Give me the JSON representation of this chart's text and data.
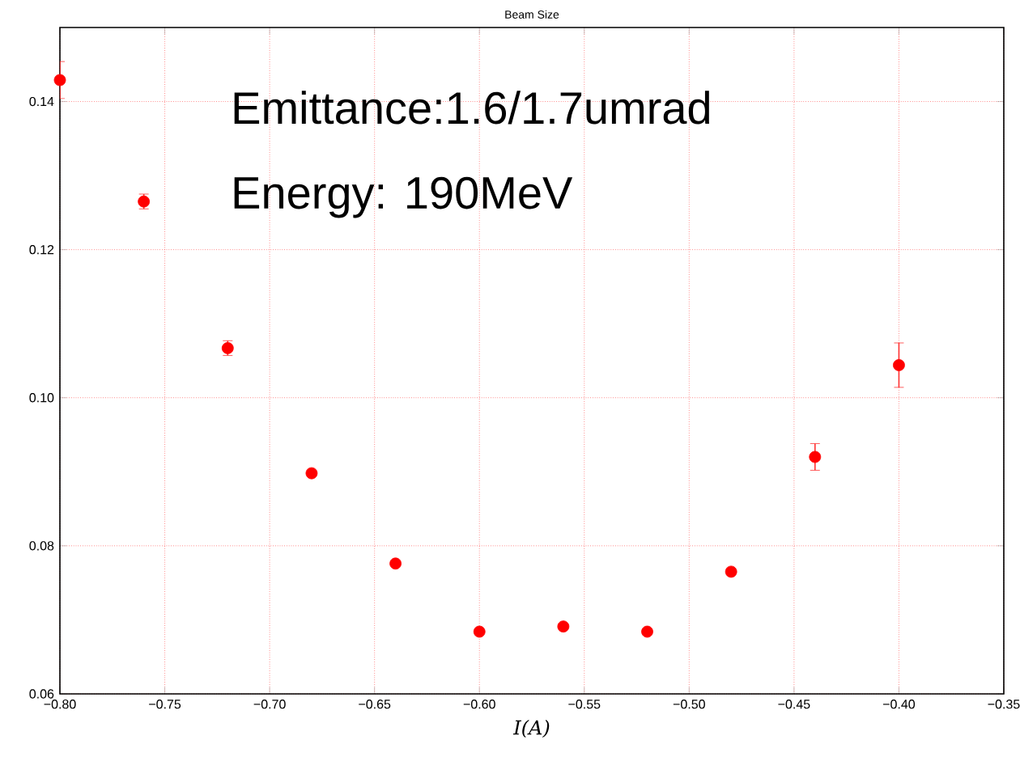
{
  "chart_data": {
    "type": "scatter",
    "title": "Beam Size",
    "xlabel": "I(A)",
    "x": [
      -0.8,
      -0.76,
      -0.72,
      -0.68,
      -0.64,
      -0.6,
      -0.56,
      -0.52,
      -0.48,
      -0.44,
      -0.4
    ],
    "values": [
      0.1429,
      0.1265,
      0.1067,
      0.0898,
      0.0776,
      0.0684,
      0.0691,
      0.0684,
      0.0765,
      0.092,
      0.1044
    ],
    "errors": [
      0.0025,
      0.001,
      0.001,
      null,
      null,
      null,
      null,
      null,
      null,
      0.0018,
      0.003
    ],
    "color": "#ff0000",
    "marker": "circle",
    "grid": true,
    "xlim": [
      -0.8,
      -0.35
    ],
    "xticks": [
      {
        "value": -0.8,
        "label": "−0.80"
      },
      {
        "value": -0.75,
        "label": "−0.75"
      },
      {
        "value": -0.7,
        "label": "−0.70"
      },
      {
        "value": -0.65,
        "label": "−0.65"
      },
      {
        "value": -0.6,
        "label": "−0.60"
      },
      {
        "value": -0.55,
        "label": "−0.55"
      },
      {
        "value": -0.5,
        "label": "−0.50"
      },
      {
        "value": -0.45,
        "label": "−0.45"
      },
      {
        "value": -0.4,
        "label": "−0.40"
      },
      {
        "value": -0.35,
        "label": "−0.35"
      }
    ],
    "ylim": [
      0.06,
      0.15
    ],
    "yticks": [
      {
        "value": 0.06,
        "label": "0.06"
      },
      {
        "value": 0.08,
        "label": "0.08"
      },
      {
        "value": 0.1,
        "label": "0.10"
      },
      {
        "value": 0.12,
        "label": "0.12"
      },
      {
        "value": 0.14,
        "label": "0.14"
      }
    ],
    "annotations": [
      "Emittance:1.6/1.7umrad",
      "Energy: 190MeV"
    ]
  }
}
